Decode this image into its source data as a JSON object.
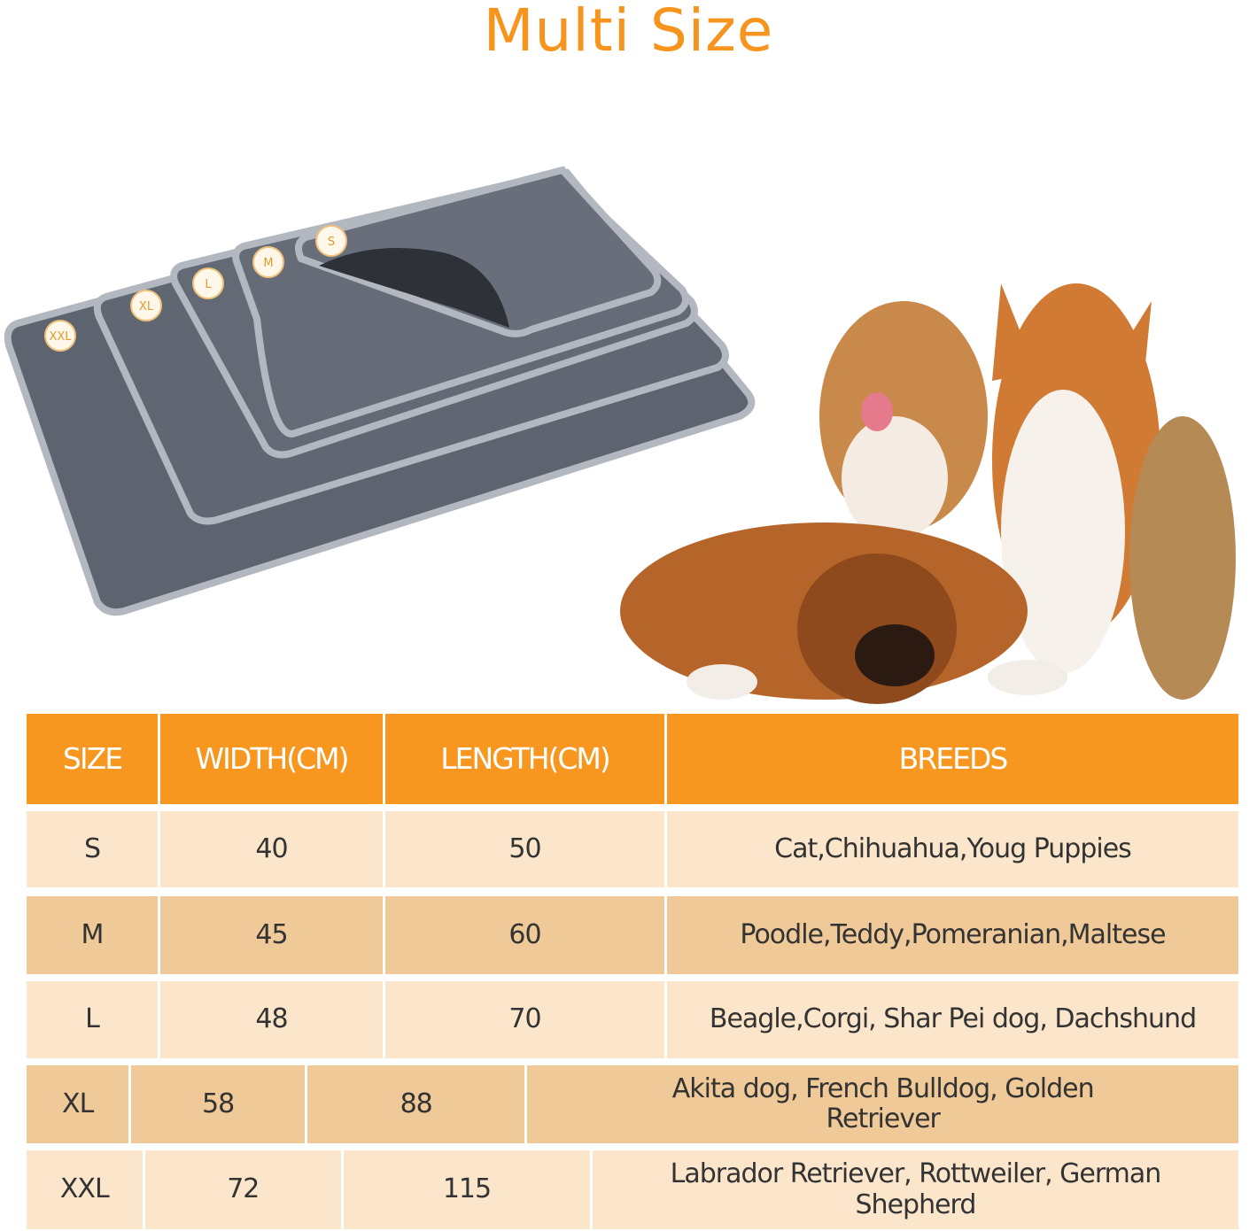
{
  "title": "Multi Size",
  "mat_labels": [
    "XXL",
    "XL",
    "L",
    "M",
    "S"
  ],
  "colors": {
    "accent": "#f7941d",
    "header_bg": "#f7971f",
    "row_light": "#fce6cb",
    "row_dark": "#efc997",
    "mat": "#5d6470",
    "mat_border": "#b3b8c0"
  },
  "table": {
    "headers": [
      "SIZE",
      "WIDTH(CM)",
      "LENGTH(CM)",
      "BREEDS"
    ],
    "rows": [
      {
        "size": "S",
        "width": "40",
        "length": "50",
        "breeds": "Cat,Chihuahua,Youg Puppies"
      },
      {
        "size": "M",
        "width": "45",
        "length": "60",
        "breeds": "Poodle,Teddy,Pomeranian,Maltese"
      },
      {
        "size": "L",
        "width": "48",
        "length": "70",
        "breeds": "Beagle,Corgi, Shar Pei dog, Dachshund"
      },
      {
        "size": "XL",
        "width": "58",
        "length": "88",
        "breeds": "Akita dog, French Bulldog, Golden Retriever"
      },
      {
        "size": "XXL",
        "width": "72",
        "length": "115",
        "breeds": "Labrador Retriever, Rottweiler, German Shepherd"
      }
    ]
  }
}
